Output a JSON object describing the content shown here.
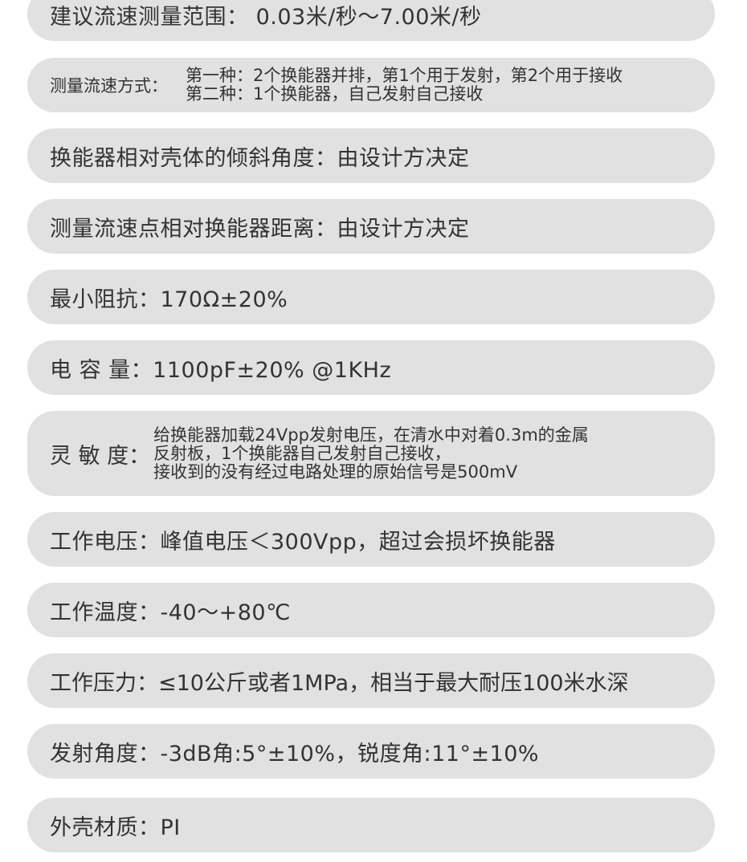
{
  "specs": [
    {
      "text": "建议流速测量范围：  0.03米/秒～7.00米/秒"
    },
    {
      "label": "测量流速方式：",
      "lines": [
        "第一种：2个换能器并排，第1个用于发射，第2个用于接收",
        "第二种：1个换能器，自己发射自己接收"
      ]
    },
    {
      "text": "换能器相对壳体的倾斜角度：由设计方决定"
    },
    {
      "text": "测量流速点相对换能器距离：由设计方决定"
    },
    {
      "text": "最小阻抗：170Ω±20%"
    },
    {
      "text": "电 容 量：1100pF±20% @1KHz"
    },
    {
      "label": "灵 敏 度：",
      "lines": [
        "给换能器加载24Vpp发射电压，在清水中对着0.3m的金属",
        "反射板，1个换能器自己发射自己接收，",
        "接收到的没有经过电路处理的原始信号是500mV"
      ]
    },
    {
      "text": "工作电压：峰值电压＜300Vpp，超过会损坏换能器"
    },
    {
      "text": "工作温度：-40～+80℃"
    },
    {
      "text": "工作压力：≤10公斤或者1MPa，相当于最大耐压100米水深"
    },
    {
      "text": "发射角度：-3dB角:5°±10%，锐度角:11°±10%"
    },
    {
      "text": "外壳材质：PI"
    }
  ]
}
